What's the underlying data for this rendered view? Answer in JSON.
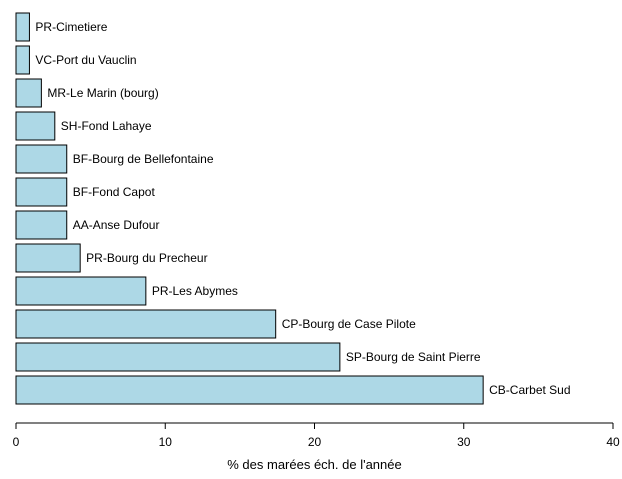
{
  "chart_data": {
    "type": "bar",
    "orientation": "horizontal",
    "categories": [
      "PR-Cimetiere",
      "VC-Port du Vauclin",
      "MR-Le Marin (bourg)",
      "SH-Fond Lahaye",
      "BF-Bourg de Bellefontaine",
      "BF-Fond Capot",
      "AA-Anse Dufour",
      "PR-Bourg du Precheur",
      "PR-Les Abymes",
      "CP-Bourg de Case Pilote",
      "SP-Bourg de Saint Pierre",
      "CB-Carbet Sud"
    ],
    "values": [
      0.9,
      0.9,
      1.7,
      2.6,
      3.4,
      3.4,
      3.4,
      4.3,
      8.7,
      17.4,
      21.7,
      31.3
    ],
    "xlabel": "% des marées éch. de l'année",
    "ylabel": "",
    "xlim": [
      0,
      40
    ],
    "xticks": [
      0,
      10,
      20,
      30,
      40
    ],
    "bar_color": "#add8e6",
    "bar_border_color": "#000000",
    "grid": false,
    "legend": "none"
  }
}
